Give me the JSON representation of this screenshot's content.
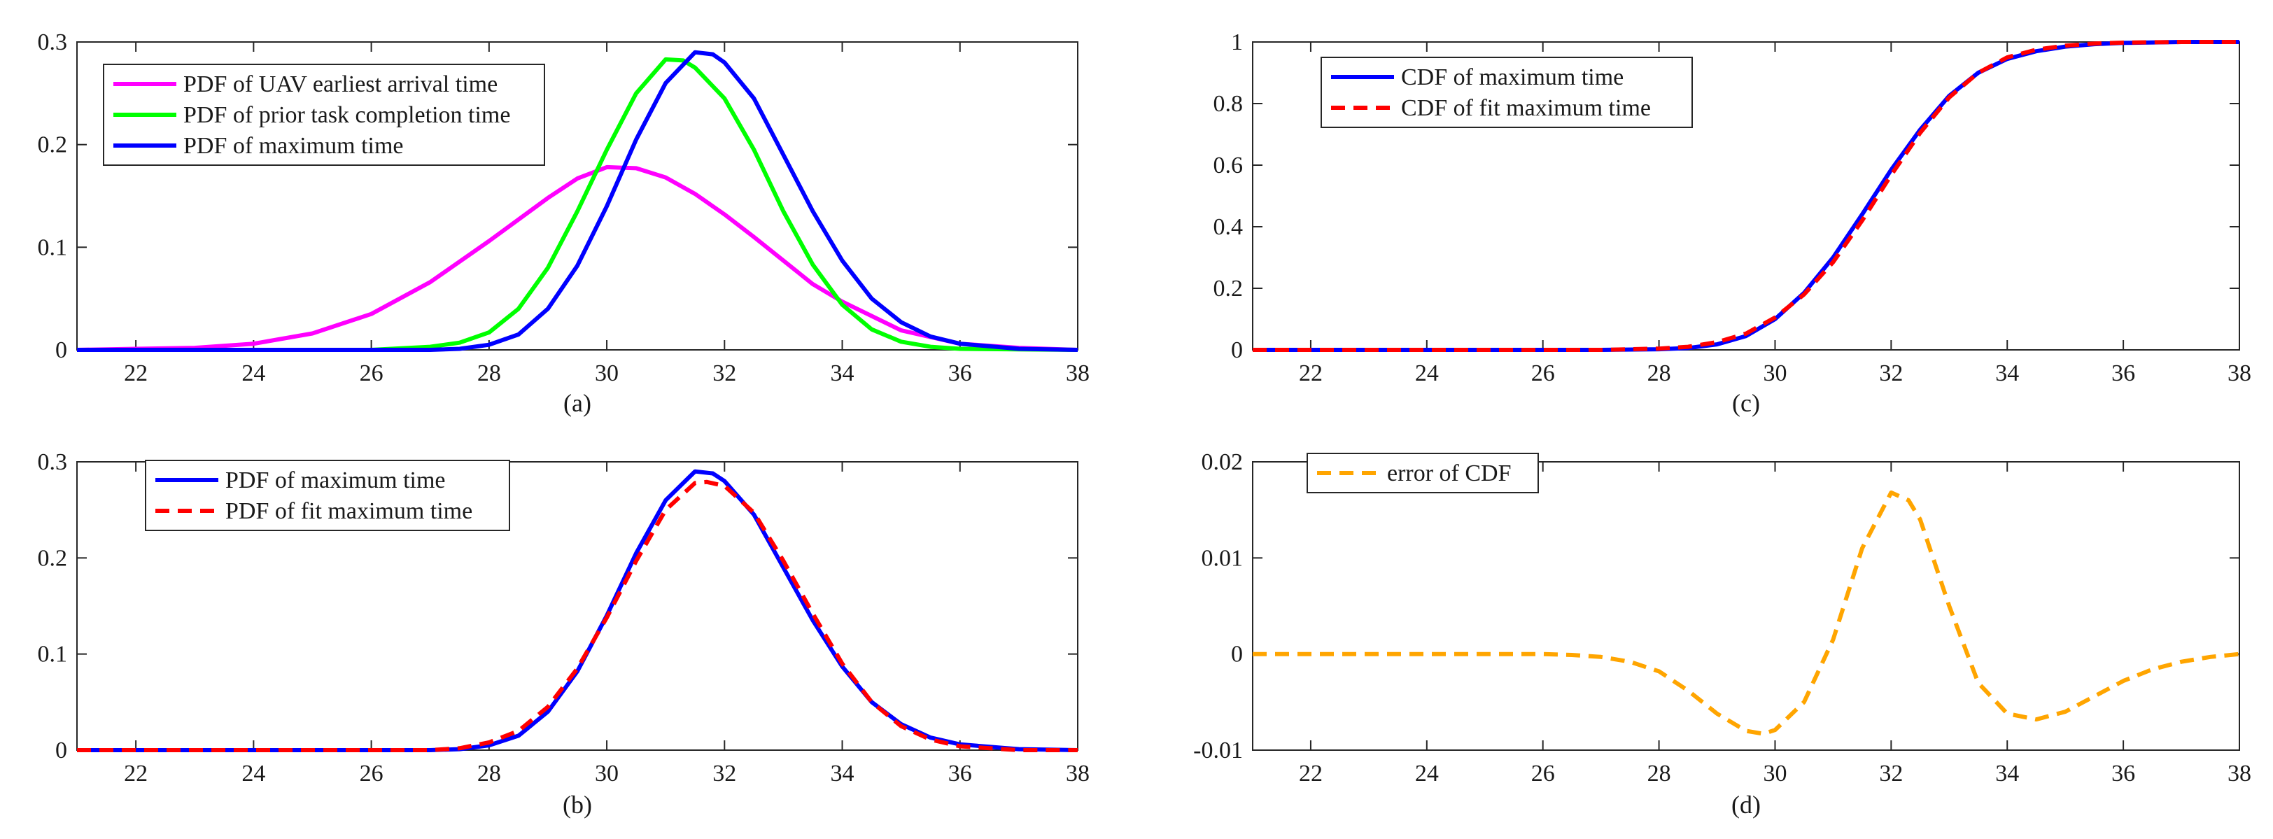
{
  "chart_data": [
    {
      "id": "a",
      "type": "line",
      "caption": "(a)",
      "xlim": [
        21,
        38
      ],
      "ylim": [
        0,
        0.3
      ],
      "xticks": [
        22,
        24,
        26,
        28,
        30,
        32,
        34,
        36,
        38
      ],
      "yticks": [
        0,
        0.1,
        0.2,
        0.3
      ],
      "legend_position": "top-left",
      "series": [
        {
          "name": "PDF of UAV earliest arrival time",
          "color": "#ff00ff",
          "style": "solid",
          "points": [
            [
              21,
              0.0
            ],
            [
              22,
              0.001
            ],
            [
              23,
              0.002
            ],
            [
              24,
              0.006
            ],
            [
              25,
              0.016
            ],
            [
              26,
              0.035
            ],
            [
              27,
              0.066
            ],
            [
              28,
              0.106
            ],
            [
              28.5,
              0.127
            ],
            [
              29,
              0.148
            ],
            [
              29.5,
              0.167
            ],
            [
              30,
              0.178
            ],
            [
              30.5,
              0.177
            ],
            [
              31,
              0.168
            ],
            [
              31.5,
              0.152
            ],
            [
              32,
              0.132
            ],
            [
              32.5,
              0.11
            ],
            [
              33,
              0.087
            ],
            [
              33.5,
              0.064
            ],
            [
              34,
              0.047
            ],
            [
              35,
              0.019
            ],
            [
              36,
              0.006
            ],
            [
              37,
              0.002
            ],
            [
              38,
              0.0
            ]
          ]
        },
        {
          "name": "PDF of prior task completion time",
          "color": "#00ff00",
          "style": "solid",
          "points": [
            [
              21,
              0.0
            ],
            [
              26,
              0.0
            ],
            [
              27,
              0.003
            ],
            [
              27.5,
              0.007
            ],
            [
              28,
              0.017
            ],
            [
              28.5,
              0.04
            ],
            [
              29,
              0.08
            ],
            [
              29.5,
              0.135
            ],
            [
              30,
              0.195
            ],
            [
              30.5,
              0.25
            ],
            [
              31,
              0.283
            ],
            [
              31.3,
              0.282
            ],
            [
              31.5,
              0.275
            ],
            [
              32,
              0.245
            ],
            [
              32.5,
              0.195
            ],
            [
              33,
              0.135
            ],
            [
              33.5,
              0.083
            ],
            [
              34,
              0.044
            ],
            [
              34.5,
              0.02
            ],
            [
              35,
              0.008
            ],
            [
              35.5,
              0.003
            ],
            [
              36,
              0.001
            ],
            [
              38,
              0.0
            ]
          ]
        },
        {
          "name": "PDF of maximum time",
          "color": "#0000ff",
          "style": "solid",
          "points": [
            [
              21,
              0.0
            ],
            [
              27,
              0.0
            ],
            [
              27.5,
              0.001
            ],
            [
              28,
              0.005
            ],
            [
              28.5,
              0.015
            ],
            [
              29,
              0.04
            ],
            [
              29.5,
              0.082
            ],
            [
              30,
              0.14
            ],
            [
              30.5,
              0.205
            ],
            [
              31,
              0.26
            ],
            [
              31.5,
              0.29
            ],
            [
              31.8,
              0.288
            ],
            [
              32,
              0.28
            ],
            [
              32.5,
              0.245
            ],
            [
              33,
              0.19
            ],
            [
              33.5,
              0.135
            ],
            [
              34,
              0.087
            ],
            [
              34.5,
              0.05
            ],
            [
              35,
              0.027
            ],
            [
              35.5,
              0.013
            ],
            [
              36,
              0.006
            ],
            [
              37,
              0.001
            ],
            [
              38,
              0.0
            ]
          ]
        }
      ]
    },
    {
      "id": "b",
      "type": "line",
      "caption": "(b)",
      "xlim": [
        21,
        38
      ],
      "ylim": [
        0,
        0.3
      ],
      "xticks": [
        22,
        24,
        26,
        28,
        30,
        32,
        34,
        36,
        38
      ],
      "yticks": [
        0,
        0.1,
        0.2,
        0.3
      ],
      "legend_position": "top-left",
      "series": [
        {
          "name": "PDF of maximum time",
          "color": "#0000ff",
          "style": "solid",
          "points": [
            [
              21,
              0.0
            ],
            [
              27,
              0.0
            ],
            [
              27.5,
              0.001
            ],
            [
              28,
              0.005
            ],
            [
              28.5,
              0.015
            ],
            [
              29,
              0.04
            ],
            [
              29.5,
              0.082
            ],
            [
              30,
              0.14
            ],
            [
              30.5,
              0.205
            ],
            [
              31,
              0.26
            ],
            [
              31.5,
              0.29
            ],
            [
              31.8,
              0.288
            ],
            [
              32,
              0.28
            ],
            [
              32.5,
              0.245
            ],
            [
              33,
              0.19
            ],
            [
              33.5,
              0.135
            ],
            [
              34,
              0.087
            ],
            [
              34.5,
              0.05
            ],
            [
              35,
              0.027
            ],
            [
              35.5,
              0.013
            ],
            [
              36,
              0.006
            ],
            [
              37,
              0.001
            ],
            [
              38,
              0.0
            ]
          ]
        },
        {
          "name": "PDF of fit maximum time",
          "color": "#ff0000",
          "style": "dashed",
          "points": [
            [
              21,
              0.0
            ],
            [
              27,
              0.0
            ],
            [
              27.5,
              0.002
            ],
            [
              28,
              0.008
            ],
            [
              28.5,
              0.02
            ],
            [
              29,
              0.045
            ],
            [
              29.5,
              0.085
            ],
            [
              30,
              0.138
            ],
            [
              30.5,
              0.197
            ],
            [
              31,
              0.25
            ],
            [
              31.5,
              0.278
            ],
            [
              31.7,
              0.279
            ],
            [
              32,
              0.275
            ],
            [
              32.5,
              0.247
            ],
            [
              33,
              0.197
            ],
            [
              33.5,
              0.142
            ],
            [
              34,
              0.09
            ],
            [
              34.5,
              0.05
            ],
            [
              35,
              0.025
            ],
            [
              35.5,
              0.011
            ],
            [
              36,
              0.004
            ],
            [
              37,
              0.0
            ],
            [
              38,
              0.0
            ]
          ]
        }
      ]
    },
    {
      "id": "c",
      "type": "line",
      "caption": "(c)",
      "xlim": [
        21,
        38
      ],
      "ylim": [
        0,
        1
      ],
      "xticks": [
        22,
        24,
        26,
        28,
        30,
        32,
        34,
        36,
        38
      ],
      "yticks": [
        0,
        0.2,
        0.4,
        0.6,
        0.8,
        1
      ],
      "legend_position": "top-left",
      "series": [
        {
          "name": "CDF of maximum time",
          "color": "#0000ff",
          "style": "solid",
          "points": [
            [
              21,
              0.0
            ],
            [
              27,
              0.0
            ],
            [
              28,
              0.002
            ],
            [
              28.5,
              0.006
            ],
            [
              29,
              0.018
            ],
            [
              29.5,
              0.045
            ],
            [
              30,
              0.1
            ],
            [
              30.5,
              0.185
            ],
            [
              31,
              0.3
            ],
            [
              31.5,
              0.44
            ],
            [
              32,
              0.585
            ],
            [
              32.5,
              0.715
            ],
            [
              33,
              0.825
            ],
            [
              33.5,
              0.9
            ],
            [
              34,
              0.945
            ],
            [
              34.5,
              0.97
            ],
            [
              35,
              0.985
            ],
            [
              35.5,
              0.993
            ],
            [
              36,
              0.997
            ],
            [
              37,
              1.0
            ],
            [
              38,
              1.0
            ]
          ]
        },
        {
          "name": "CDF of fit maximum time",
          "color": "#ff0000",
          "style": "dashed",
          "points": [
            [
              21,
              0.0
            ],
            [
              27,
              0.0
            ],
            [
              28,
              0.004
            ],
            [
              28.5,
              0.01
            ],
            [
              29,
              0.025
            ],
            [
              29.5,
              0.053
            ],
            [
              30,
              0.105
            ],
            [
              30.5,
              0.18
            ],
            [
              31,
              0.285
            ],
            [
              31.5,
              0.42
            ],
            [
              32,
              0.568
            ],
            [
              32.5,
              0.705
            ],
            [
              33,
              0.82
            ],
            [
              33.5,
              0.9
            ],
            [
              34,
              0.95
            ],
            [
              34.5,
              0.975
            ],
            [
              35,
              0.988
            ],
            [
              35.5,
              0.995
            ],
            [
              36,
              0.998
            ],
            [
              37,
              1.0
            ],
            [
              38,
              1.0
            ]
          ]
        }
      ]
    },
    {
      "id": "d",
      "type": "line",
      "caption": "(d)",
      "xlim": [
        21,
        38
      ],
      "ylim": [
        -0.01,
        0.02
      ],
      "xticks": [
        22,
        24,
        26,
        28,
        30,
        32,
        34,
        36,
        38
      ],
      "yticks": [
        -0.01,
        0,
        0.01,
        0.02
      ],
      "ytick_labels": [
        "-0.01",
        "0",
        "0.01",
        "0.02"
      ],
      "legend_position": "top-left",
      "series": [
        {
          "name": "error of CDF",
          "color": "#ffa500",
          "style": "dashed",
          "points": [
            [
              21,
              0.0
            ],
            [
              26,
              0.0
            ],
            [
              26.5,
              -0.0001
            ],
            [
              27,
              -0.0003
            ],
            [
              27.5,
              -0.0008
            ],
            [
              28,
              -0.0018
            ],
            [
              28.5,
              -0.0038
            ],
            [
              29,
              -0.0062
            ],
            [
              29.5,
              -0.008
            ],
            [
              29.8,
              -0.0083
            ],
            [
              30,
              -0.0079
            ],
            [
              30.5,
              -0.005
            ],
            [
              31,
              0.0015
            ],
            [
              31.5,
              0.011
            ],
            [
              32,
              0.0168
            ],
            [
              32.3,
              0.016
            ],
            [
              32.5,
              0.014
            ],
            [
              33,
              0.005
            ],
            [
              33.5,
              -0.003
            ],
            [
              34,
              -0.0062
            ],
            [
              34.5,
              -0.0068
            ],
            [
              35,
              -0.006
            ],
            [
              35.5,
              -0.0044
            ],
            [
              36,
              -0.0028
            ],
            [
              36.5,
              -0.0016
            ],
            [
              37,
              -0.0008
            ],
            [
              37.5,
              -0.0003
            ],
            [
              38,
              0.0
            ]
          ]
        }
      ]
    }
  ]
}
